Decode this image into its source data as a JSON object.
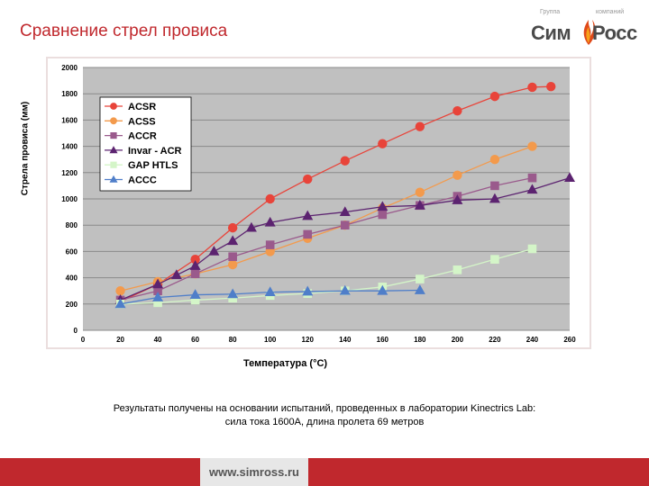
{
  "page": {
    "title": "Сравнение стрел провиса",
    "note_line1": "Результаты получены на основании испытаний, проведенных в лаборатории Kinectrics Lab:",
    "note_line2": "сила тока 1600А, длина пролета 69 метров",
    "footer_url": "www.simross.ru"
  },
  "logo": {
    "word1": "Сим",
    "word2": "Росс",
    "tag1": "Группа",
    "tag2": "компаний"
  },
  "chart_data": {
    "type": "line",
    "xlabel": "Температура (°С)",
    "ylabel": "Стрела провиса (мм)",
    "xlim": [
      0,
      260
    ],
    "ylim": [
      0,
      2000
    ],
    "xticks": [
      0,
      20,
      40,
      60,
      80,
      100,
      120,
      140,
      160,
      180,
      200,
      220,
      240,
      260
    ],
    "yticks": [
      0,
      200,
      400,
      600,
      800,
      1000,
      1200,
      1400,
      1600,
      1800,
      2000
    ],
    "grid": true,
    "legend_position": "top-left",
    "colors": {
      "plot_bg": "#c0c0c0",
      "frame": "#ebdede"
    },
    "series": [
      {
        "name": "ACSR",
        "color": "#e8443a",
        "marker": "circle",
        "x": [
          20,
          40,
          60,
          80,
          100,
          120,
          140,
          160,
          180,
          200,
          220,
          240,
          250
        ],
        "y": [
          220,
          350,
          540,
          780,
          1000,
          1150,
          1290,
          1420,
          1550,
          1670,
          1780,
          1850,
          1855
        ]
      },
      {
        "name": "ACSS",
        "color": "#f39a4c",
        "marker": "circle",
        "x": [
          20,
          40,
          60,
          80,
          100,
          120,
          140,
          160,
          180,
          200,
          220,
          240
        ],
        "y": [
          300,
          370,
          430,
          500,
          600,
          700,
          800,
          930,
          1050,
          1180,
          1300,
          1400
        ]
      },
      {
        "name": "ACCR",
        "color": "#9a5a8c",
        "marker": "square",
        "x": [
          20,
          40,
          60,
          80,
          100,
          120,
          140,
          160,
          180,
          200,
          220,
          240
        ],
        "y": [
          230,
          300,
          430,
          560,
          650,
          730,
          800,
          880,
          950,
          1020,
          1100,
          1160
        ]
      },
      {
        "name": "Invar - ACR",
        "color": "#5c2370",
        "marker": "triangle",
        "x": [
          20,
          40,
          50,
          60,
          70,
          80,
          90,
          100,
          120,
          140,
          160,
          180,
          200,
          220,
          240,
          260
        ],
        "y": [
          230,
          350,
          420,
          490,
          600,
          680,
          780,
          820,
          870,
          900,
          940,
          950,
          990,
          1000,
          1070,
          1160
        ]
      },
      {
        "name": "GAP HTLS",
        "color": "#d4f5c8",
        "marker": "square",
        "x": [
          20,
          40,
          60,
          80,
          100,
          120,
          140,
          160,
          180,
          200,
          220,
          240
        ],
        "y": [
          200,
          210,
          230,
          245,
          265,
          280,
          300,
          330,
          390,
          460,
          540,
          620
        ]
      },
      {
        "name": "ACCC",
        "color": "#4f7ec9",
        "marker": "triangle",
        "x": [
          20,
          40,
          60,
          80,
          100,
          120,
          140,
          160,
          180
        ],
        "y": [
          200,
          250,
          270,
          275,
          290,
          295,
          300,
          300,
          305
        ]
      }
    ]
  }
}
